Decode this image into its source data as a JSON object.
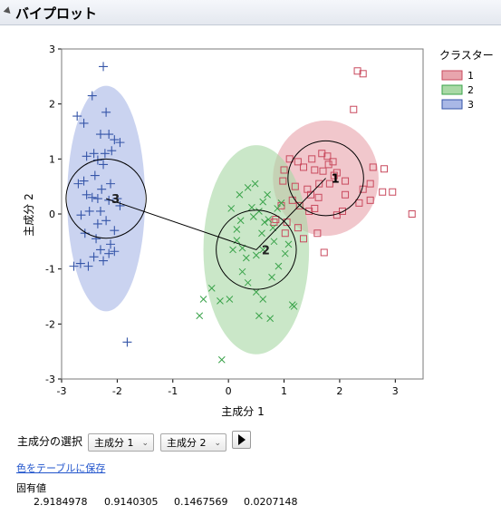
{
  "report": {
    "title": "バイプロット"
  },
  "plot": {
    "xlabel": "主成分 1",
    "ylabel": "主成分 2",
    "legend_title": "クラスター"
  },
  "chart_data": {
    "type": "scatter",
    "xlabel": "主成分 1",
    "ylabel": "主成分 2",
    "xlim": [
      -3,
      3.5
    ],
    "ylim": [
      -3,
      3
    ],
    "xticks": [
      -3,
      -2,
      -1,
      0,
      1,
      2,
      3
    ],
    "yticks": [
      -3,
      -2,
      -1,
      0,
      1,
      2,
      3
    ],
    "legend_title": "クラスター",
    "legend_position": "right",
    "clusters": [
      {
        "name": "1",
        "marker": "square",
        "color": "#c94a5e",
        "fill": "#e8a5ad",
        "center": [
          1.75,
          0.65
        ],
        "circle_radius": 0.68,
        "ellipse_axes": [
          0.95,
          1.05
        ],
        "x": [
          2.32,
          2.42,
          2.25,
          1.68,
          1.5,
          1.78,
          1.88,
          1.8,
          1.55,
          1.35,
          1.25,
          1.1,
          1.0,
          0.98,
          1.2,
          1.42,
          1.63,
          1.9,
          2.1,
          2.6,
          2.8,
          2.55,
          2.77,
          2.95,
          3.3,
          2.55,
          2.1,
          2.05,
          1.95,
          1.55,
          1.45,
          1.28,
          1.15,
          0.95,
          1.05,
          1.6,
          1.72,
          1.35,
          1.95,
          1.82,
          1.7,
          0.82,
          1.02,
          1.25,
          1.48,
          2.42,
          2.35,
          0.85,
          1.62
        ],
        "y": [
          2.6,
          2.55,
          1.9,
          1.1,
          1.0,
          1.05,
          0.95,
          0.9,
          0.8,
          0.85,
          0.95,
          1.0,
          0.8,
          0.6,
          0.5,
          0.45,
          0.55,
          0.7,
          0.6,
          0.85,
          0.82,
          0.55,
          0.4,
          0.4,
          0.0,
          0.25,
          0.35,
          0.05,
          -0.02,
          0.1,
          0.05,
          0.15,
          0.25,
          0.15,
          -0.15,
          -0.35,
          -0.7,
          -0.45,
          0.75,
          0.55,
          0.78,
          -0.15,
          -0.35,
          -0.25,
          0.35,
          0.45,
          0.2,
          -0.1,
          0.3
        ]
      },
      {
        "name": "2",
        "marker": "x",
        "color": "#3aa34a",
        "fill": "#a9d9a6",
        "center": [
          0.5,
          -0.65
        ],
        "circle_radius": 0.72,
        "ellipse_axes": [
          0.95,
          1.9
        ],
        "x": [
          0.42,
          0.62,
          0.7,
          0.48,
          0.35,
          0.2,
          0.05,
          0.22,
          0.15,
          0.45,
          0.55,
          0.65,
          0.72,
          0.8,
          0.88,
          0.95,
          0.82,
          0.62,
          0.5,
          0.32,
          0.25,
          0.15,
          0.08,
          0.25,
          0.35,
          0.5,
          0.62,
          0.78,
          1.02,
          1.08,
          0.9,
          1.15,
          0.55,
          -0.45,
          -0.52,
          -0.3,
          -0.15,
          0.02,
          0.6,
          0.75,
          -0.12,
          1.18
        ],
        "y": [
          0.12,
          0.22,
          0.35,
          0.55,
          0.48,
          0.35,
          0.1,
          -0.12,
          -0.28,
          -0.05,
          0.05,
          -0.15,
          -0.1,
          -0.25,
          0.1,
          0.2,
          -0.5,
          -0.65,
          -0.75,
          -0.8,
          -0.62,
          -0.48,
          -0.65,
          -1.05,
          -1.25,
          -1.42,
          -1.55,
          -1.15,
          -0.72,
          -0.55,
          -0.95,
          -1.65,
          -1.85,
          -1.55,
          -1.85,
          -1.35,
          -1.58,
          -1.55,
          -0.35,
          -1.9,
          -2.65,
          -1.68
        ]
      },
      {
        "name": "3",
        "marker": "plus",
        "color": "#3555a8",
        "fill": "#a9b8e6",
        "center": [
          -2.2,
          0.28
        ],
        "circle_radius": 0.72,
        "ellipse_axes": [
          0.7,
          2.05
        ],
        "x": [
          -2.25,
          -2.45,
          -2.72,
          -2.6,
          -2.2,
          -2.3,
          -2.15,
          -2.42,
          -2.55,
          -2.35,
          -2.1,
          -2.05,
          -1.95,
          -2.25,
          -2.4,
          -2.6,
          -2.7,
          -2.55,
          -2.45,
          -2.28,
          -2.15,
          -2.0,
          -1.95,
          -2.3,
          -2.5,
          -2.65,
          -2.35,
          -2.2,
          -2.05,
          -2.12,
          -2.38,
          -2.58,
          -2.3,
          -2.15,
          -2.05,
          -2.25,
          -2.42,
          -2.52,
          -2.66,
          -2.78,
          -1.82,
          -2.12,
          -2.35,
          -2.22
        ],
        "y": [
          2.68,
          2.15,
          1.78,
          1.65,
          1.85,
          1.45,
          1.45,
          1.1,
          1.05,
          0.98,
          1.15,
          1.35,
          1.3,
          0.9,
          0.7,
          0.6,
          0.55,
          0.35,
          0.3,
          0.45,
          0.25,
          0.28,
          0.15,
          0.05,
          0.05,
          -0.02,
          -0.18,
          -0.12,
          -0.3,
          -0.55,
          -0.45,
          -0.35,
          -0.65,
          -0.72,
          -0.68,
          -0.85,
          -0.78,
          -0.95,
          -0.9,
          -0.95,
          -2.33,
          0.55,
          0.28,
          1.1
        ]
      }
    ],
    "centroid_line": [
      [
        -2.2,
        0.28
      ],
      [
        0.5,
        -0.65
      ],
      [
        1.75,
        0.65
      ]
    ]
  },
  "controls": {
    "select_label": "主成分の選択",
    "x_select": "主成分 1",
    "y_select": "主成分 2",
    "save_link": "色をテーブルに保存"
  },
  "eigen": {
    "label": "固有値",
    "values": [
      "2.9184978",
      "0.9140305",
      "0.1467569",
      "0.0207148"
    ]
  }
}
